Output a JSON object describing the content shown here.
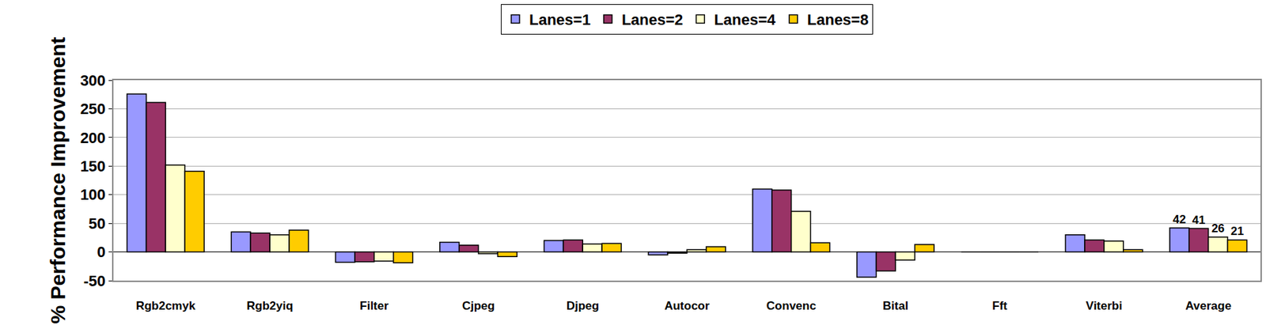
{
  "chart_data": {
    "type": "bar",
    "y_label": "% Performance Improvement",
    "categories": [
      "Rgb2cmyk",
      "Rgb2yiq",
      "Filter",
      "Cjpeg",
      "Djpeg",
      "Autocor",
      "Convenc",
      "Bital",
      "Fft",
      "Viterbi",
      "Average"
    ],
    "series": [
      {
        "name": "Lanes=1",
        "color": "#9999ff",
        "values": [
          276,
          35,
          -18,
          17,
          20,
          -5,
          110,
          -44,
          0,
          30,
          42
        ],
        "value_labels": [
          null,
          null,
          null,
          null,
          null,
          null,
          null,
          null,
          null,
          null,
          "42"
        ]
      },
      {
        "name": "Lanes=2",
        "color": "#993366",
        "values": [
          261,
          33,
          -17,
          12,
          21,
          -2,
          108,
          -33,
          0,
          21,
          41
        ],
        "value_labels": [
          null,
          null,
          null,
          null,
          null,
          null,
          null,
          null,
          null,
          null,
          "41"
        ]
      },
      {
        "name": "Lanes=4",
        "color": "#ffffcc",
        "values": [
          152,
          30,
          -16,
          -3,
          14,
          4,
          71,
          -14,
          0,
          19,
          26
        ],
        "value_labels": [
          null,
          null,
          null,
          null,
          null,
          null,
          null,
          null,
          null,
          null,
          "26"
        ]
      },
      {
        "name": "Lanes=8",
        "color": "#ffcc00",
        "values": [
          141,
          38,
          -19,
          -8,
          15,
          9,
          16,
          13,
          0,
          4,
          21
        ],
        "value_labels": [
          null,
          null,
          null,
          null,
          null,
          null,
          null,
          null,
          null,
          null,
          "21"
        ]
      }
    ],
    "ylim": [
      -50,
      300
    ],
    "yticks": [
      -50,
      0,
      50,
      100,
      150,
      200,
      250,
      300
    ],
    "grid": true,
    "legend": "top"
  }
}
